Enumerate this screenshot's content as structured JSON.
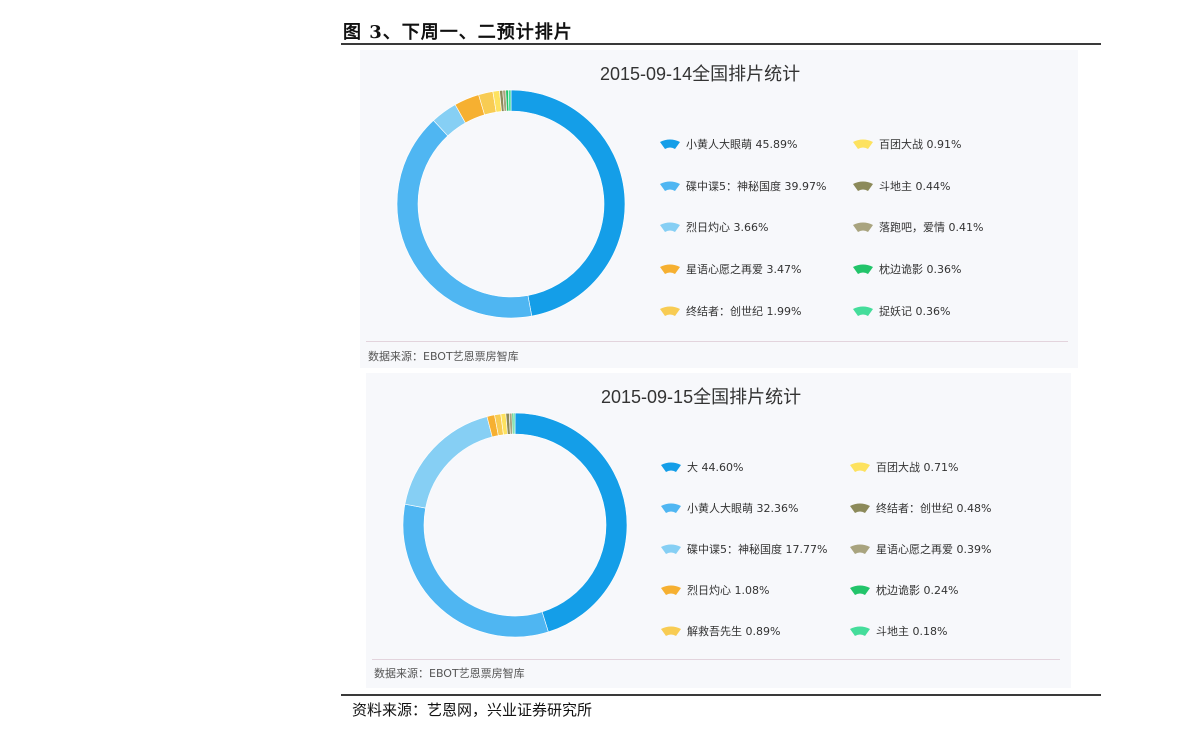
{
  "figure": {
    "title": "图 3、下周一、二预计排片",
    "source": "资料来源：艺恩网，兴业证券研究所"
  },
  "chart_data": [
    {
      "type": "pie",
      "title": "2015-09-14全国排片统计",
      "note": "数据来源：EBOT艺恩票房智库",
      "slices": [
        {
          "name": "小黄人大眼萌",
          "value": 45.89,
          "label": "小黄人大眼萌 45.89%",
          "color": "#149ee8"
        },
        {
          "name": "碟中谍5：神秘国度",
          "value": 39.97,
          "label": "碟中谍5：神秘国度 39.97%",
          "color": "#4fb6f2"
        },
        {
          "name": "烈日灼心",
          "value": 3.66,
          "label": "烈日灼心 3.66%",
          "color": "#86cff4"
        },
        {
          "name": "星语心愿之再爱",
          "value": 3.47,
          "label": "星语心愿之再爱 3.47%",
          "color": "#f6b031"
        },
        {
          "name": "终结者：创世纪",
          "value": 1.99,
          "label": "终结者：创世纪 1.99%",
          "color": "#f8cc53"
        },
        {
          "name": "百团大战",
          "value": 0.91,
          "label": "百团大战 0.91%",
          "color": "#fde25f"
        },
        {
          "name": "斗地主",
          "value": 0.44,
          "label": "斗地主 0.44%",
          "color": "#8c8a5a"
        },
        {
          "name": "落跑吧，爱情",
          "value": 0.41,
          "label": "落跑吧，爱情 0.41%",
          "color": "#a9a47f"
        },
        {
          "name": "枕边诡影",
          "value": 0.36,
          "label": "枕边诡影 0.36%",
          "color": "#22c46a"
        },
        {
          "name": "捉妖记",
          "value": 0.36,
          "label": "捉妖记 0.36%",
          "color": "#45dd9b"
        }
      ]
    },
    {
      "type": "pie",
      "title": "2015-09-15全国排片统计",
      "note": "数据来源：EBOT艺恩票房智库",
      "slices": [
        {
          "name": "大",
          "value": 44.6,
          "label": "大 44.60%",
          "color": "#149ee8"
        },
        {
          "name": "小黄人大眼萌",
          "value": 32.36,
          "label": "小黄人大眼萌 32.36%",
          "color": "#4fb6f2"
        },
        {
          "name": "碟中谍5：神秘国度",
          "value": 17.77,
          "label": "碟中谍5：神秘国度 17.77%",
          "color": "#86cff4"
        },
        {
          "name": "烈日灼心",
          "value": 1.08,
          "label": "烈日灼心 1.08%",
          "color": "#f6b031"
        },
        {
          "name": "解救吾先生",
          "value": 0.89,
          "label": "解救吾先生 0.89%",
          "color": "#f8cc53"
        },
        {
          "name": "百团大战",
          "value": 0.71,
          "label": "百团大战 0.71%",
          "color": "#fde25f"
        },
        {
          "name": "终结者：创世纪",
          "value": 0.48,
          "label": "终结者：创世纪 0.48%",
          "color": "#8c8a5a"
        },
        {
          "name": "星语心愿之再爱",
          "value": 0.39,
          "label": "星语心愿之再爱 0.39%",
          "color": "#a9a47f"
        },
        {
          "name": "枕边诡影",
          "value": 0.24,
          "label": "枕边诡影 0.24%",
          "color": "#22c46a"
        },
        {
          "name": "斗地主",
          "value": 0.18,
          "label": "斗地主 0.18%",
          "color": "#45dd9b"
        }
      ]
    }
  ]
}
